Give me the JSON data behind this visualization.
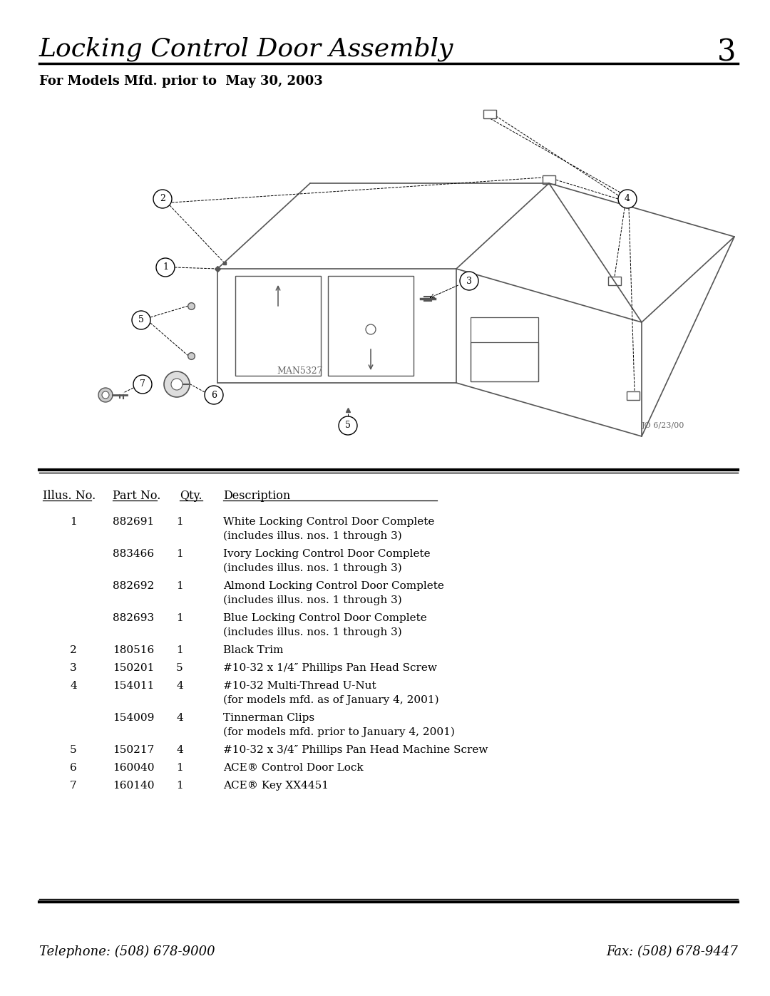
{
  "title": "Locking Control Door Assembly",
  "page_number": "3",
  "subtitle": "For Models Mfd. prior to  May 30, 2003",
  "diagram_label": "MAN5327",
  "diagram_credit": "JO 6/23/00",
  "table_headers": [
    "Illus. No.",
    "Part No.",
    "Qty.",
    "Description"
  ],
  "table_rows": [
    [
      "1",
      "882691",
      "1",
      "White Locking Control Door Complete\n(includes illus. nos. 1 through 3)"
    ],
    [
      "",
      "883466",
      "1",
      "Ivory Locking Control Door Complete\n(includes illus. nos. 1 through 3)"
    ],
    [
      "",
      "882692",
      "1",
      "Almond Locking Control Door Complete\n(includes illus. nos. 1 through 3)"
    ],
    [
      "",
      "882693",
      "1",
      "Blue Locking Control Door Complete\n(includes illus. nos. 1 through 3)"
    ],
    [
      "2",
      "180516",
      "1",
      "Black Trim"
    ],
    [
      "3",
      "150201",
      "5",
      "#10-32 x 1/4″ Phillips Pan Head Screw"
    ],
    [
      "4",
      "154011",
      "4",
      "#10-32 Multi-Thread U-Nut\n(for models mfd. as of January 4, 2001)"
    ],
    [
      "",
      "154009",
      "4",
      "Tinnerman Clips\n(for models mfd. prior to January 4, 2001)"
    ],
    [
      "5",
      "150217",
      "4",
      "#10-32 x 3/4″ Phillips Pan Head Machine Screw"
    ],
    [
      "6",
      "160040",
      "1",
      "ACE® Control Door Lock"
    ],
    [
      "7",
      "160140",
      "1",
      "ACE® Key XX4451"
    ]
  ],
  "footer_left": "Telephone: (508) 678-9000",
  "footer_right": "Fax: (508) 678-9447",
  "bg_color": "#ffffff",
  "text_color": "#000000",
  "line_color": "#000000"
}
